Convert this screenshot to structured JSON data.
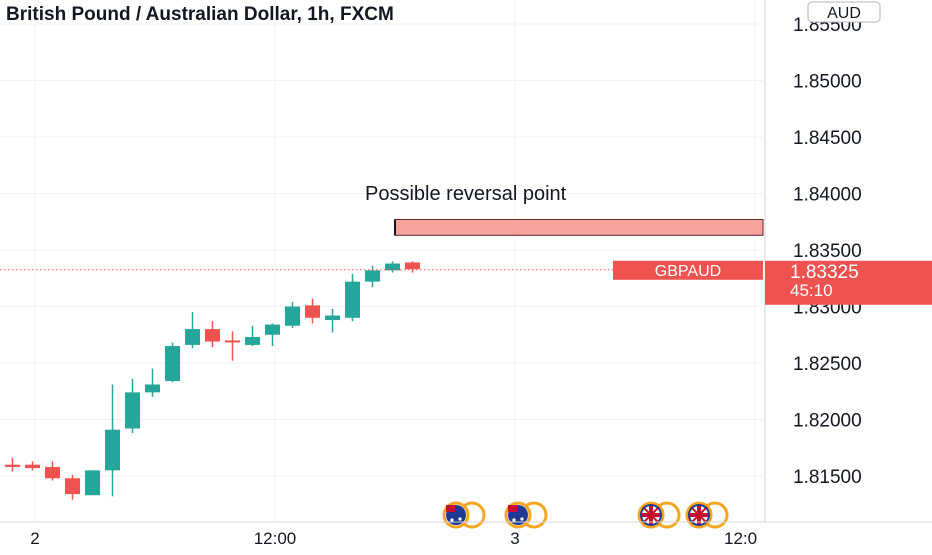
{
  "header": {
    "title": "British Pound / Australian Dollar, 1h, FXCM",
    "currency_badge": "AUD"
  },
  "annotation": {
    "text": "Possible reversal point",
    "zone_low": 1.8363,
    "zone_high": 1.8377
  },
  "price_label": {
    "symbol": "GBPAUD",
    "price": "1.83325",
    "countdown": "45:10",
    "value": 1.83325
  },
  "event_icons": [
    {
      "name": "australia-flag-icon"
    },
    {
      "name": "australia-flag-icon"
    },
    {
      "name": "uk-flag-icon"
    },
    {
      "name": "uk-flag-icon"
    }
  ],
  "colors": {
    "up": "#26a69a",
    "down": "#ef5350",
    "zone_fill": "#f7a39b",
    "price_line": "#ef5350"
  },
  "chart_data": {
    "type": "candlestick",
    "title": "British Pound / Australian Dollar, 1h, FXCM",
    "y_ticks": [
      "1.85500",
      "1.85000",
      "1.84500",
      "1.84000",
      "1.83500",
      "1.83000",
      "1.82500",
      "1.82000",
      "1.81500"
    ],
    "x_ticks": [
      "2",
      "12:00",
      "3",
      "12:0"
    ],
    "ylim": [
      1.8085,
      1.8563
    ],
    "grid": true,
    "candles": [
      {
        "o": 1.816,
        "h": 1.8166,
        "l": 1.8154,
        "c": 1.8158
      },
      {
        "o": 1.816,
        "h": 1.8163,
        "l": 1.8155,
        "c": 1.8157
      },
      {
        "o": 1.8158,
        "h": 1.8163,
        "l": 1.8146,
        "c": 1.8148
      },
      {
        "o": 1.8148,
        "h": 1.8151,
        "l": 1.8129,
        "c": 1.8134
      },
      {
        "o": 1.8133,
        "h": 1.8155,
        "l": 1.8133,
        "c": 1.8155
      },
      {
        "o": 1.8155,
        "h": 1.8231,
        "l": 1.8132,
        "c": 1.8191
      },
      {
        "o": 1.8192,
        "h": 1.8236,
        "l": 1.8188,
        "c": 1.8224
      },
      {
        "o": 1.8224,
        "h": 1.8245,
        "l": 1.822,
        "c": 1.8231
      },
      {
        "o": 1.8234,
        "h": 1.8268,
        "l": 1.8233,
        "c": 1.8265
      },
      {
        "o": 1.8266,
        "h": 1.8295,
        "l": 1.8263,
        "c": 1.828
      },
      {
        "o": 1.828,
        "h": 1.8287,
        "l": 1.8264,
        "c": 1.8269
      },
      {
        "o": 1.827,
        "h": 1.8278,
        "l": 1.8252,
        "c": 1.8269
      },
      {
        "o": 1.8266,
        "h": 1.8283,
        "l": 1.8265,
        "c": 1.8273
      },
      {
        "o": 1.8275,
        "h": 1.8285,
        "l": 1.8265,
        "c": 1.8284
      },
      {
        "o": 1.8283,
        "h": 1.8304,
        "l": 1.8281,
        "c": 1.83
      },
      {
        "o": 1.8301,
        "h": 1.8307,
        "l": 1.8285,
        "c": 1.829
      },
      {
        "o": 1.8288,
        "h": 1.8298,
        "l": 1.8277,
        "c": 1.8292
      },
      {
        "o": 1.829,
        "h": 1.8329,
        "l": 1.8287,
        "c": 1.8322
      },
      {
        "o": 1.8322,
        "h": 1.8336,
        "l": 1.8317,
        "c": 1.8332
      },
      {
        "o": 1.8332,
        "h": 1.834,
        "l": 1.833,
        "c": 1.8338
      },
      {
        "o": 1.8339,
        "h": 1.834,
        "l": 1.833,
        "c": 1.8333
      }
    ]
  }
}
